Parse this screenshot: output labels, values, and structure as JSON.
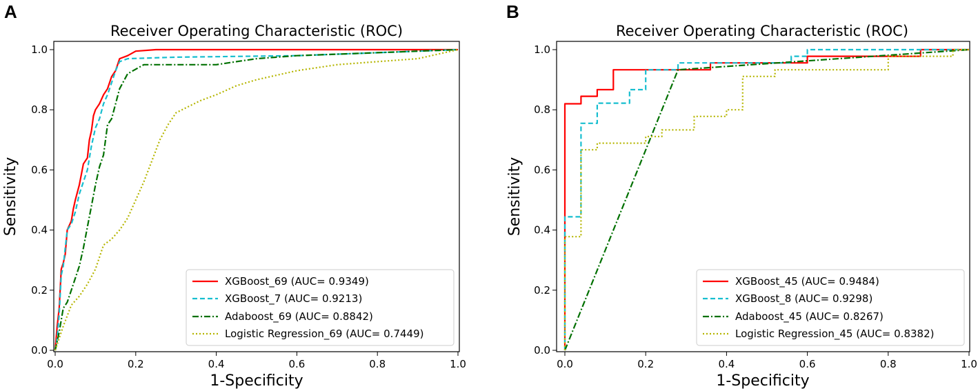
{
  "chart_data": [
    {
      "type": "line",
      "panel_label": "A",
      "title": "Receiver Operating Characteristic (ROC)",
      "xlabel": "1-Specificity",
      "ylabel": "Sensitivity",
      "xlim": [
        0,
        1
      ],
      "ylim": [
        0,
        1
      ],
      "xticks": [
        "0.0",
        "0.2",
        "0.4",
        "0.6",
        "0.8",
        "1.0"
      ],
      "yticks": [
        "0.0",
        "0.2",
        "0.4",
        "0.6",
        "0.8",
        "1.0"
      ],
      "legend_position": "lower-right",
      "series": [
        {
          "name": "XGBoost_69 (AUC= 0.9349)",
          "color": "#ff0000",
          "dash": "solid",
          "points": [
            [
              0,
              0
            ],
            [
              0.005,
              0.08
            ],
            [
              0.01,
              0.14
            ],
            [
              0.015,
              0.27
            ],
            [
              0.02,
              0.29
            ],
            [
              0.025,
              0.32
            ],
            [
              0.03,
              0.4
            ],
            [
              0.04,
              0.43
            ],
            [
              0.045,
              0.47
            ],
            [
              0.05,
              0.5
            ],
            [
              0.06,
              0.55
            ],
            [
              0.07,
              0.62
            ],
            [
              0.08,
              0.64
            ],
            [
              0.085,
              0.7
            ],
            [
              0.09,
              0.73
            ],
            [
              0.095,
              0.78
            ],
            [
              0.1,
              0.8
            ],
            [
              0.11,
              0.82
            ],
            [
              0.12,
              0.85
            ],
            [
              0.13,
              0.87
            ],
            [
              0.14,
              0.91
            ],
            [
              0.15,
              0.93
            ],
            [
              0.16,
              0.97
            ],
            [
              0.18,
              0.98
            ],
            [
              0.2,
              0.995
            ],
            [
              0.25,
              1.0
            ],
            [
              1.0,
              1.0
            ]
          ]
        },
        {
          "name": "XGBoost_7 (AUC= 0.9213)",
          "color": "#17becf",
          "dash": "dashed",
          "points": [
            [
              0,
              0
            ],
            [
              0.005,
              0.04
            ],
            [
              0.01,
              0.12
            ],
            [
              0.015,
              0.25
            ],
            [
              0.02,
              0.28
            ],
            [
              0.03,
              0.4
            ],
            [
              0.04,
              0.42
            ],
            [
              0.05,
              0.46
            ],
            [
              0.06,
              0.52
            ],
            [
              0.07,
              0.56
            ],
            [
              0.08,
              0.6
            ],
            [
              0.09,
              0.68
            ],
            [
              0.1,
              0.74
            ],
            [
              0.11,
              0.77
            ],
            [
              0.12,
              0.82
            ],
            [
              0.13,
              0.85
            ],
            [
              0.14,
              0.89
            ],
            [
              0.15,
              0.93
            ],
            [
              0.16,
              0.96
            ],
            [
              0.18,
              0.97
            ],
            [
              0.3,
              0.975
            ],
            [
              0.6,
              0.98
            ],
            [
              0.8,
              0.99
            ],
            [
              1.0,
              1.0
            ]
          ]
        },
        {
          "name": "Adaboost_69 (AUC= 0.8842)",
          "color": "#007000",
          "dash": "dashdot",
          "points": [
            [
              0,
              0
            ],
            [
              0.01,
              0.06
            ],
            [
              0.02,
              0.14
            ],
            [
              0.03,
              0.16
            ],
            [
              0.04,
              0.2
            ],
            [
              0.05,
              0.24
            ],
            [
              0.06,
              0.28
            ],
            [
              0.07,
              0.34
            ],
            [
              0.08,
              0.41
            ],
            [
              0.09,
              0.48
            ],
            [
              0.1,
              0.55
            ],
            [
              0.11,
              0.61
            ],
            [
              0.12,
              0.65
            ],
            [
              0.13,
              0.75
            ],
            [
              0.14,
              0.77
            ],
            [
              0.15,
              0.82
            ],
            [
              0.16,
              0.87
            ],
            [
              0.18,
              0.92
            ],
            [
              0.22,
              0.95
            ],
            [
              0.4,
              0.95
            ],
            [
              0.45,
              0.96
            ],
            [
              0.5,
              0.97
            ],
            [
              0.6,
              0.98
            ],
            [
              0.8,
              0.99
            ],
            [
              1.0,
              1.0
            ]
          ]
        },
        {
          "name": "Logistic Regression_69 (AUC= 0.7449)",
          "color": "#b5b500",
          "dash": "dotted",
          "points": [
            [
              0,
              0
            ],
            [
              0.02,
              0.08
            ],
            [
              0.04,
              0.15
            ],
            [
              0.06,
              0.18
            ],
            [
              0.08,
              0.22
            ],
            [
              0.1,
              0.27
            ],
            [
              0.12,
              0.35
            ],
            [
              0.14,
              0.37
            ],
            [
              0.16,
              0.4
            ],
            [
              0.18,
              0.44
            ],
            [
              0.2,
              0.5
            ],
            [
              0.22,
              0.56
            ],
            [
              0.24,
              0.63
            ],
            [
              0.26,
              0.7
            ],
            [
              0.28,
              0.75
            ],
            [
              0.3,
              0.79
            ],
            [
              0.33,
              0.81
            ],
            [
              0.36,
              0.83
            ],
            [
              0.4,
              0.85
            ],
            [
              0.45,
              0.88
            ],
            [
              0.5,
              0.9
            ],
            [
              0.6,
              0.93
            ],
            [
              0.7,
              0.95
            ],
            [
              0.8,
              0.96
            ],
            [
              0.9,
              0.97
            ],
            [
              1.0,
              1.0
            ]
          ]
        }
      ]
    },
    {
      "type": "line",
      "panel_label": "B",
      "title": "Receiver Operating Characteristic (ROC)",
      "xlabel": "1-Specificity",
      "ylabel": "Sensitivity",
      "xlim": [
        0,
        1
      ],
      "ylim": [
        0,
        1
      ],
      "xticks": [
        "0.0",
        "0.2",
        "0.4",
        "0.6",
        "0.8",
        "1.0"
      ],
      "yticks": [
        "0.0",
        "0.2",
        "0.4",
        "0.6",
        "0.8",
        "1.0"
      ],
      "legend_position": "lower-right",
      "series": [
        {
          "name": "XGBoost_45 (AUC= 0.9484)",
          "color": "#ff0000",
          "dash": "solid",
          "points": [
            [
              0,
              0
            ],
            [
              0,
              0.82
            ],
            [
              0.04,
              0.82
            ],
            [
              0.04,
              0.845
            ],
            [
              0.08,
              0.845
            ],
            [
              0.08,
              0.867
            ],
            [
              0.12,
              0.867
            ],
            [
              0.12,
              0.933
            ],
            [
              0.36,
              0.933
            ],
            [
              0.36,
              0.956
            ],
            [
              0.6,
              0.956
            ],
            [
              0.6,
              0.978
            ],
            [
              0.88,
              0.978
            ],
            [
              0.88,
              1.0
            ],
            [
              1.0,
              1.0
            ]
          ]
        },
        {
          "name": "XGBoost_8 (AUC= 0.9298)",
          "color": "#17becf",
          "dash": "dashed",
          "points": [
            [
              0,
              0
            ],
            [
              0,
              0.444
            ],
            [
              0.04,
              0.444
            ],
            [
              0.04,
              0.755
            ],
            [
              0.08,
              0.755
            ],
            [
              0.08,
              0.822
            ],
            [
              0.16,
              0.822
            ],
            [
              0.16,
              0.867
            ],
            [
              0.2,
              0.867
            ],
            [
              0.2,
              0.933
            ],
            [
              0.28,
              0.933
            ],
            [
              0.28,
              0.956
            ],
            [
              0.56,
              0.956
            ],
            [
              0.56,
              0.978
            ],
            [
              0.6,
              0.978
            ],
            [
              0.6,
              1.0
            ],
            [
              1.0,
              1.0
            ]
          ]
        },
        {
          "name": "Adaboost_45 (AUC= 0.8267)",
          "color": "#007000",
          "dash": "dashdot",
          "points": [
            [
              0,
              0
            ],
            [
              0.28,
              0.933
            ],
            [
              1.0,
              1.0
            ]
          ]
        },
        {
          "name": "Logistic Regression_45 (AUC= 0.8382)",
          "color": "#b5b500",
          "dash": "dotted",
          "points": [
            [
              0,
              0
            ],
            [
              0,
              0.378
            ],
            [
              0.04,
              0.378
            ],
            [
              0.04,
              0.667
            ],
            [
              0.08,
              0.667
            ],
            [
              0.08,
              0.689
            ],
            [
              0.2,
              0.689
            ],
            [
              0.2,
              0.711
            ],
            [
              0.24,
              0.711
            ],
            [
              0.24,
              0.733
            ],
            [
              0.32,
              0.733
            ],
            [
              0.32,
              0.778
            ],
            [
              0.4,
              0.778
            ],
            [
              0.4,
              0.8
            ],
            [
              0.44,
              0.8
            ],
            [
              0.44,
              0.911
            ],
            [
              0.52,
              0.911
            ],
            [
              0.52,
              0.933
            ],
            [
              0.8,
              0.933
            ],
            [
              0.8,
              0.978
            ],
            [
              0.96,
              0.978
            ],
            [
              0.96,
              1.0
            ],
            [
              1.0,
              1.0
            ]
          ]
        }
      ]
    }
  ]
}
